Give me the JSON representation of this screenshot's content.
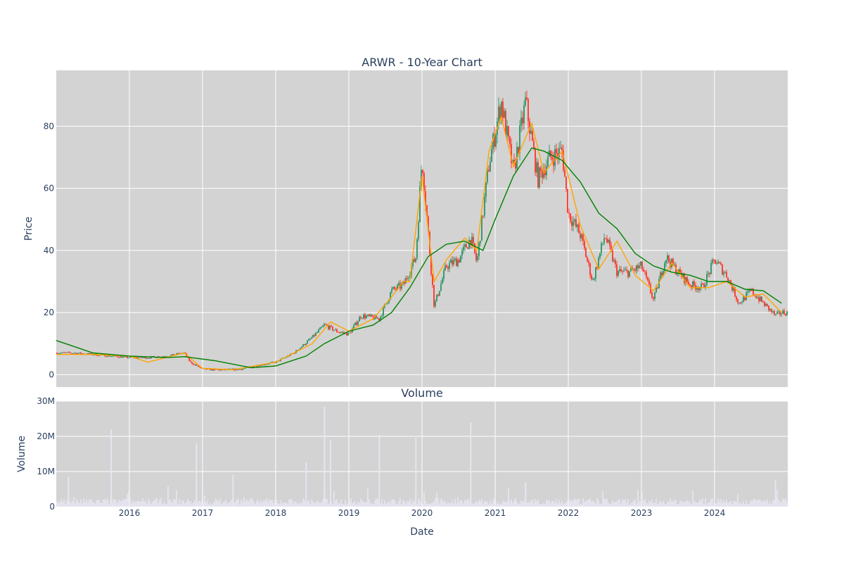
{
  "chart_data": [
    {
      "type": "candlestick",
      "title": "ARWR - 10-Year Chart",
      "ylabel": "Price",
      "ylim": [
        -4,
        98
      ],
      "yticks": [
        "0",
        "20",
        "40",
        "60",
        "80"
      ],
      "grid": true,
      "colors": {
        "plot_bg": "#d3d3d3",
        "up": "#3d9970",
        "down": "#ff4136",
        "ma_short": "#ffa500",
        "ma_long": "#008000"
      },
      "series": [
        {
          "name": "price",
          "x": [
            "2015-01",
            "2015-04",
            "2015-07",
            "2015-10",
            "2016-01",
            "2016-04",
            "2016-07",
            "2016-10",
            "2016-11",
            "2017-01",
            "2017-04",
            "2017-07",
            "2017-10",
            "2018-01",
            "2018-04",
            "2018-07",
            "2018-09",
            "2018-11",
            "2019-01",
            "2019-03",
            "2019-06",
            "2019-08",
            "2019-10",
            "2019-12",
            "2020-01",
            "2020-03",
            "2020-05",
            "2020-07",
            "2020-09",
            "2020-10",
            "2020-12",
            "2021-02",
            "2021-04",
            "2021-06",
            "2021-08",
            "2021-10",
            "2021-12",
            "2022-01",
            "2022-03",
            "2022-05",
            "2022-07",
            "2022-09",
            "2022-11",
            "2023-01",
            "2023-03",
            "2023-05",
            "2023-07",
            "2023-09",
            "2023-11",
            "2024-01",
            "2024-03",
            "2024-05",
            "2024-07",
            "2024-09",
            "2024-11",
            "2024-12"
          ],
          "y": [
            7,
            7,
            6.5,
            6,
            5.5,
            5.5,
            6,
            7,
            4,
            1.8,
            1.5,
            1.7,
            3,
            4,
            7,
            12,
            16,
            14,
            13,
            19,
            18,
            27,
            29,
            38,
            70,
            22,
            35,
            37,
            44,
            36,
            68,
            88,
            65,
            88,
            63,
            70,
            72,
            52,
            45,
            30,
            45,
            33,
            33,
            35,
            24,
            38,
            33,
            29,
            28,
            37,
            32,
            23,
            27,
            23,
            19,
            20
          ]
        },
        {
          "name": "ma_short",
          "x": [
            "2015-01",
            "2015-07",
            "2016-01",
            "2016-04",
            "2016-10",
            "2017-01",
            "2017-06",
            "2018-01",
            "2018-07",
            "2018-10",
            "2019-01",
            "2019-05",
            "2019-08",
            "2019-10",
            "2019-11",
            "2020-01",
            "2020-03",
            "2020-05",
            "2020-08",
            "2020-10",
            "2020-12",
            "2021-02",
            "2021-04",
            "2021-07",
            "2021-09",
            "2021-12",
            "2022-03",
            "2022-06",
            "2022-09",
            "2022-12",
            "2023-03",
            "2023-06",
            "2023-09",
            "2023-12",
            "2024-03",
            "2024-06",
            "2024-09",
            "2024-12"
          ],
          "y": [
            6.5,
            6.5,
            6,
            4,
            7,
            2,
            1.6,
            4,
            10,
            17,
            14,
            18,
            25,
            30,
            30,
            64,
            30,
            37,
            44,
            40,
            72,
            83,
            67,
            81,
            65,
            72,
            48,
            34,
            43,
            32,
            27,
            36,
            28,
            28,
            30,
            25,
            26,
            20
          ]
        },
        {
          "name": "ma_long",
          "x": [
            "2015-01",
            "2015-07",
            "2016-01",
            "2016-07",
            "2016-10",
            "2017-03",
            "2017-09",
            "2018-01",
            "2018-06",
            "2018-09",
            "2019-01",
            "2019-05",
            "2019-08",
            "2019-11",
            "2020-02",
            "2020-05",
            "2020-08",
            "2020-11",
            "2021-01",
            "2021-04",
            "2021-07",
            "2021-09",
            "2021-12",
            "2022-03",
            "2022-06",
            "2022-09",
            "2022-12",
            "2023-03",
            "2023-06",
            "2023-09",
            "2023-12",
            "2024-03",
            "2024-06",
            "2024-09",
            "2024-12"
          ],
          "y": [
            11,
            7,
            6,
            5.5,
            5.8,
            4.5,
            2.2,
            2.8,
            6,
            10,
            14,
            16,
            20,
            28,
            38,
            42,
            43,
            40,
            50,
            64,
            73,
            72,
            69,
            62,
            52,
            47,
            39,
            35,
            33,
            32,
            30,
            30,
            27.5,
            27,
            23
          ]
        }
      ]
    },
    {
      "type": "bar",
      "title": "Volume",
      "ylabel": "Volume",
      "xlabel": "Date",
      "ylim": [
        0,
        30000000
      ],
      "yticks": [
        "0",
        "10M",
        "20M",
        "30M"
      ],
      "xticks": [
        "2016",
        "2017",
        "2018",
        "2019",
        "2020",
        "2021",
        "2022",
        "2023",
        "2024"
      ],
      "colors": {
        "bars": "#e8e6f3"
      },
      "x": [
        "2015-03",
        "2015-10",
        "2016-12",
        "2017-06",
        "2018-06",
        "2018-09",
        "2018-10",
        "2019-06",
        "2019-12",
        "2020-09",
        "2021-06",
        "2024-11"
      ],
      "values": [
        8500000,
        22000000,
        18000000,
        9000000,
        12500000,
        28500000,
        19000000,
        20500000,
        19500000,
        24000000,
        7000000,
        7500000
      ]
    }
  ]
}
